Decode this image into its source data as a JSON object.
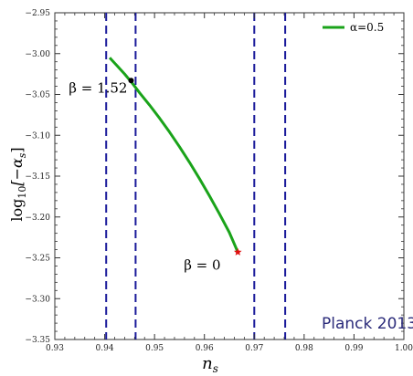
{
  "chart_data": {
    "type": "line",
    "xlabel": "n",
    "xlabel_sub": "s",
    "ylabel_prefix": "log",
    "ylabel_sub": "10",
    "ylabel_body": "[−α",
    "ylabel_body_sub": "s",
    "ylabel_suffix": "]",
    "xlim": [
      0.93,
      1.0
    ],
    "ylim": [
      -3.35,
      -2.95
    ],
    "xticks": [
      0.93,
      0.94,
      0.95,
      0.96,
      0.97,
      0.98,
      0.99,
      1.0
    ],
    "xtick_labels": [
      "0.93",
      "0.94",
      "0.95",
      "0.96",
      "0.97",
      "0.98",
      "0.99",
      "1.00"
    ],
    "yticks": [
      -3.35,
      -3.3,
      -3.25,
      -3.2,
      -3.15,
      -3.1,
      -3.05,
      -3.0,
      -2.95
    ],
    "ytick_labels": [
      "−3.35",
      "−3.30",
      "−3.25",
      "−3.20",
      "−3.15",
      "−3.10",
      "−3.05",
      "−3.00",
      "−2.95"
    ],
    "series": [
      {
        "name": "α=0.5",
        "color": "#1aa31a",
        "x": [
          0.941,
          0.9425,
          0.944,
          0.9455,
          0.947,
          0.949,
          0.951,
          0.953,
          0.955,
          0.957,
          0.959,
          0.961,
          0.963,
          0.965,
          0.9667
        ],
        "y": [
          -3.005,
          -3.015,
          -3.025,
          -3.036,
          -3.048,
          -3.063,
          -3.079,
          -3.096,
          -3.114,
          -3.133,
          -3.153,
          -3.174,
          -3.196,
          -3.219,
          -3.243
        ]
      }
    ],
    "vlines": {
      "color": "#1a1a9a",
      "x": [
        0.9403,
        0.9462,
        0.97,
        0.9762
      ]
    },
    "points": [
      {
        "x": 0.9453,
        "y": -3.033,
        "color": "#000000"
      },
      {
        "x": 0.9667,
        "y": -3.243,
        "color": "#e01010",
        "marker": "star"
      }
    ],
    "annotations": [
      {
        "text": "β = 1.52",
        "x": 0.9453,
        "y": -3.041
      },
      {
        "text": "β = 0",
        "x": 0.964,
        "y": -3.258
      }
    ],
    "legend": {
      "label": "α=0.5",
      "placement": "top-right"
    },
    "badge": {
      "text": "Planck 2013",
      "color": "#2b2b7a"
    }
  }
}
